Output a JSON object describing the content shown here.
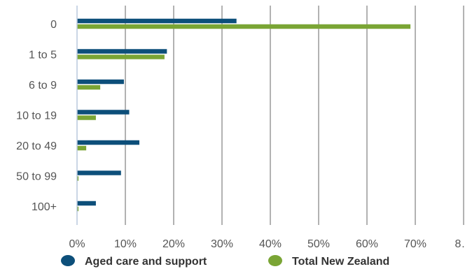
{
  "chart_data": {
    "type": "bar",
    "orientation": "horizontal",
    "categories": [
      "0",
      "1 to 5",
      "6 to 9",
      "10 to 19",
      "20 to 49",
      "50 to 99",
      "100+"
    ],
    "series": [
      {
        "name": "Aged care and support",
        "color": "#0d4f7a",
        "values": [
          33.0,
          18.6,
          9.7,
          10.8,
          12.9,
          9.1,
          3.9
        ]
      },
      {
        "name": "Total New Zealand",
        "color": "#7aa535",
        "values": [
          69.0,
          18.1,
          4.8,
          3.9,
          1.9,
          0.3,
          0.3
        ]
      }
    ],
    "x_ticks": [
      "0%",
      "10%",
      "20%",
      "30%",
      "40%",
      "50%",
      "60%",
      "70%",
      "8…"
    ],
    "xlim": [
      0,
      80
    ],
    "grid": "vertical",
    "legend": "bottom",
    "title": "",
    "xlabel": "",
    "ylabel": ""
  }
}
